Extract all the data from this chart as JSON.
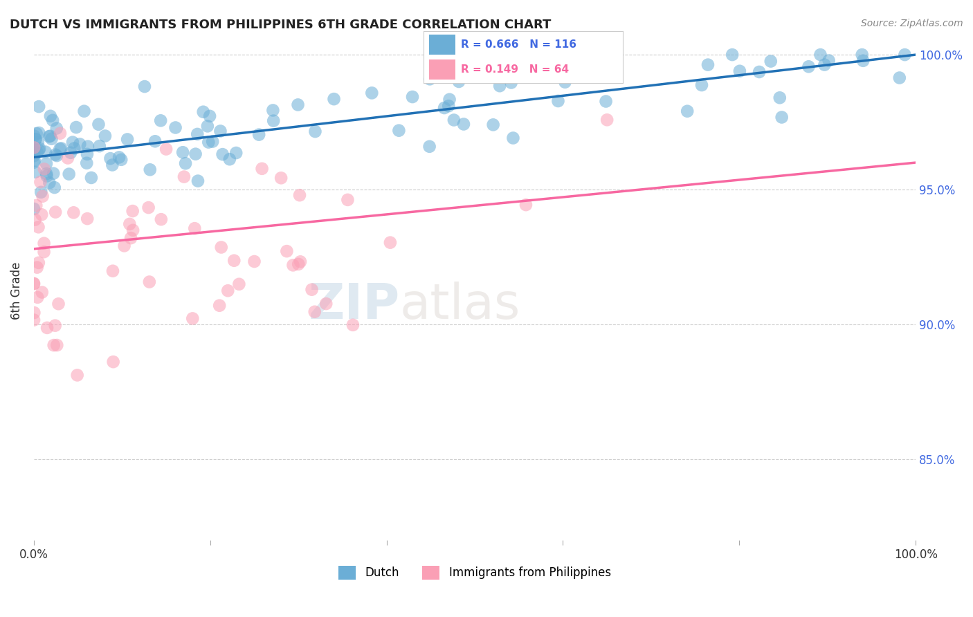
{
  "title": "DUTCH VS IMMIGRANTS FROM PHILIPPINES 6TH GRADE CORRELATION CHART",
  "source": "Source: ZipAtlas.com",
  "ylabel": "6th Grade",
  "xlim": [
    0.0,
    1.0
  ],
  "ylim": [
    0.82,
    1.005
  ],
  "yticks": [
    0.85,
    0.9,
    0.95,
    1.0
  ],
  "ytick_labels": [
    "85.0%",
    "90.0%",
    "95.0%",
    "100.0%"
  ],
  "dutch_color": "#6baed6",
  "phil_color": "#fa9fb5",
  "dutch_line_color": "#2171b5",
  "phil_line_color": "#f768a1",
  "legend_blue_label": "Dutch",
  "legend_pink_label": "Immigrants from Philippines",
  "R_dutch": 0.666,
  "N_dutch": 116,
  "R_phil": 0.149,
  "N_phil": 64,
  "background_color": "#ffffff",
  "dutch_intercept": 0.962,
  "dutch_slope": 0.038,
  "phil_intercept": 0.928,
  "phil_slope": 0.032
}
